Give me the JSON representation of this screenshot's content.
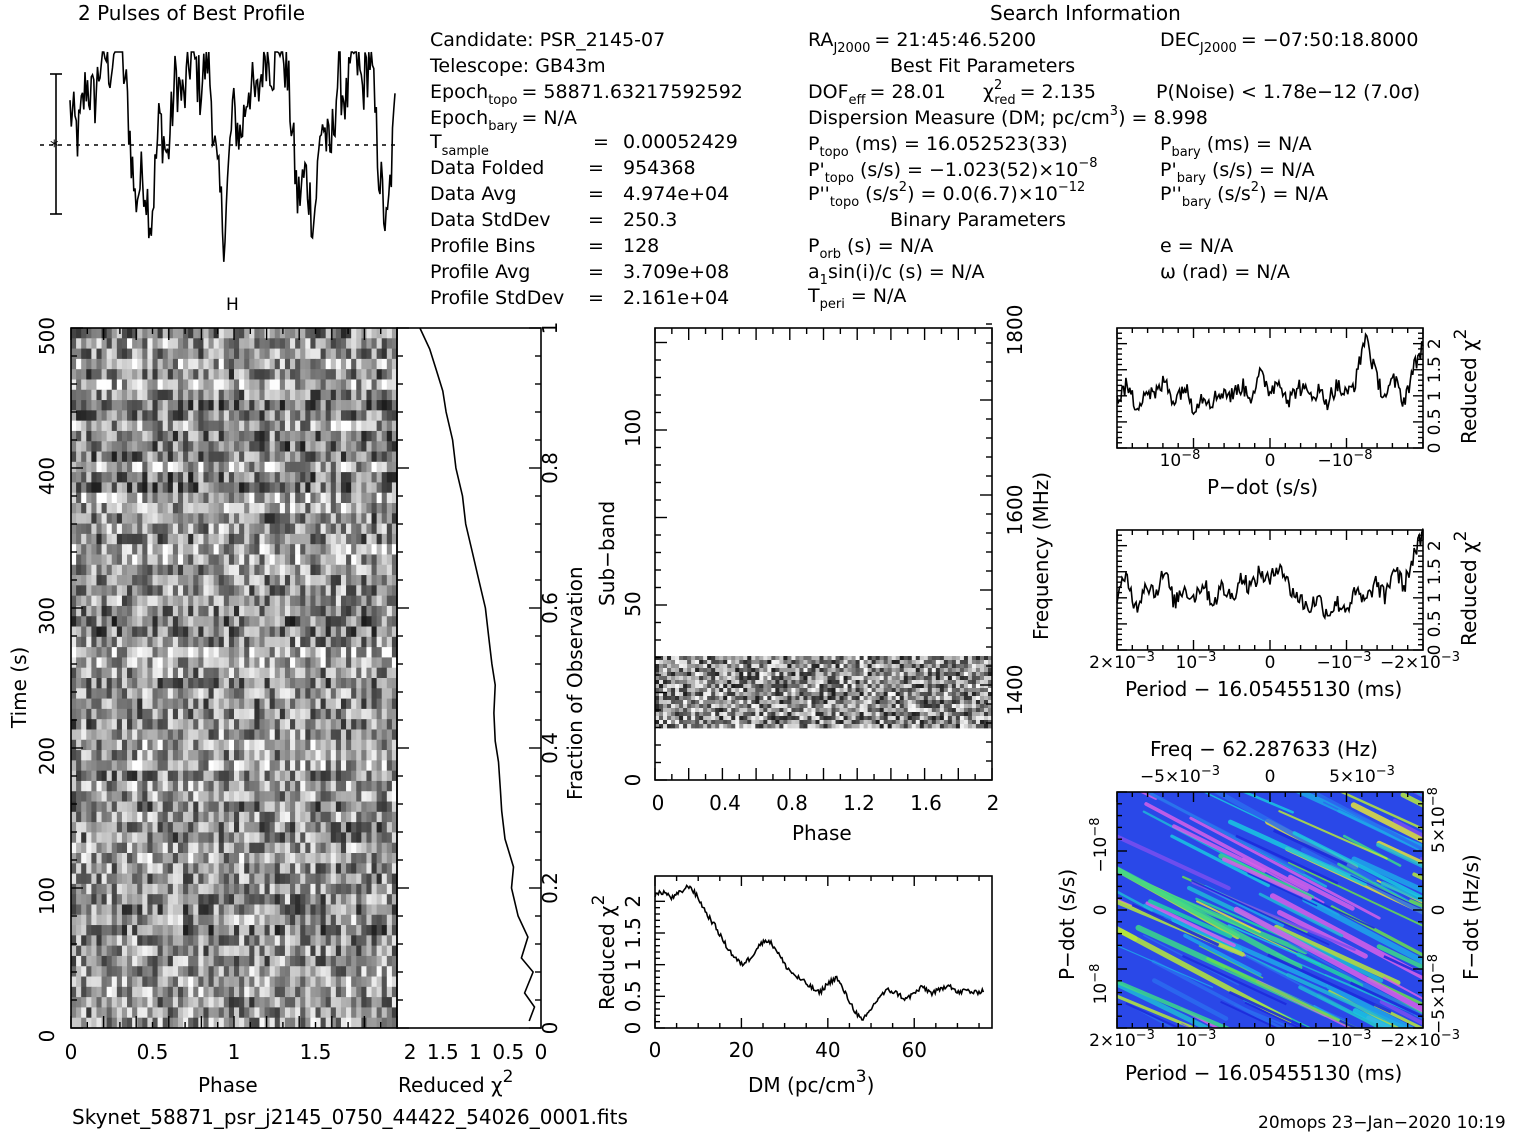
{
  "header": {
    "profile_title": "2 Pulses of Best Profile",
    "search_title": "Search Information",
    "best_fit_title": "Best Fit Parameters",
    "binary_title": "Binary Parameters"
  },
  "candidate_info": {
    "candidate": "Candidate:  PSR_2145-07",
    "telescope": "Telescope:  GB43m",
    "epoch_topo_label": "Epoch",
    "epoch_topo_sub": "topo",
    "epoch_topo_value": "= 58871.63217592592",
    "epoch_bary_label": "Epoch",
    "epoch_bary_sub": "bary",
    "epoch_bary_value": "= N/A",
    "tsample_label": "T",
    "tsample_sub": "sample",
    "tsample_eq": "=",
    "tsample_value": "0.00052429",
    "rows": [
      {
        "label": "Data Folded",
        "eq": "=",
        "value": "954368"
      },
      {
        "label": "Data Avg",
        "eq": "=",
        "value": "4.974e+04"
      },
      {
        "label": "Data StdDev",
        "eq": "=",
        "value": "250.3"
      },
      {
        "label": "Profile Bins",
        "eq": "=",
        "value": "128"
      },
      {
        "label": "Profile Avg",
        "eq": "=",
        "value": "3.709e+08"
      },
      {
        "label": "Profile StdDev",
        "eq": "=",
        "value": "2.161e+04"
      }
    ]
  },
  "search_info": {
    "ra_label": "RA",
    "ra_sub": "J2000",
    "ra_value": "= 21:45:46.5200",
    "dec_label": "DEC",
    "dec_sub": "J2000",
    "dec_value": "= −07:50:18.8000",
    "dof_label": "DOF",
    "dof_sub": "eff",
    "dof_value": "= 28.01",
    "chi_label": "χ",
    "chi_sup": "2",
    "chi_sub": "red",
    "chi_value": "= 2.135",
    "pnoise": "P(Noise) < 1.78e−12   (7.0σ)",
    "dm_line": "Dispersion Measure (DM; pc/cm",
    "dm_sup": "3",
    "dm_value": ") = 8.998",
    "ptopo_label": "P",
    "ptopo_sub": "topo",
    "ptopo_value": "(ms) =  16.052523(33)",
    "pbary_label": "P",
    "pbary_sub": "bary",
    "pbary_value": "(ms) = N/A",
    "pdot_topo_label": "P'",
    "pdot_topo_sub": "topo",
    "pdot_topo_value": "(s/s) = −1.023(52)×10",
    "pdot_topo_exp": "−8",
    "pdot_bary_label": "P'",
    "pdot_bary_sub": "bary",
    "pdot_bary_value": "(s/s) = N/A",
    "pddot_topo_label": "P''",
    "pddot_topo_sub": "topo",
    "pddot_topo_value": "(s/s",
    "pddot_topo_sup": "2",
    "pddot_topo_value2": ") = 0.0(6.7)×10",
    "pddot_topo_exp": "−12",
    "pddot_bary_label": "P''",
    "pddot_bary_sub": "bary",
    "pddot_bary_value": "(s/s",
    "pddot_bary_sup": "2",
    "pddot_bary_value2": ") = N/A",
    "porb_label": "P",
    "porb_sub": "orb",
    "porb_value": "(s) = N/A",
    "a1_label": "a",
    "a1_sub": "1",
    "a1_value": "sin(i)/c (s) = N/A",
    "tperi_label": "T",
    "tperi_sub": "peri",
    "tperi_value": "= N/A",
    "e_value": "e = N/A",
    "omega_value": "ω (rad) = N/A"
  },
  "axes": {
    "time_ylabel": "Time (s)",
    "phase_xlabel": "Phase",
    "redchi_xlabel": "Reduced χ",
    "redchi_sup": "2",
    "fraction_label": "Fraction of Observation",
    "subband_label": "Sub−band",
    "frequency_label": "Frequency (MHz)",
    "phase2_xlabel": "Phase",
    "dm_xlabel": "DM (pc/cm",
    "dm_xsup": "3",
    "dm_xclose": ")",
    "dm_ylabel": "Reduced χ",
    "dm_ysup": "2",
    "pdot_xlabel": "P−dot (s/s)",
    "period_xlabel": "Period − 16.05455130 (ms)",
    "period2_xlabel": "Period − 16.05455130 (ms)",
    "redchi_side1": "Reduced χ",
    "redchi_side2": "Reduced χ",
    "redchi_side_sup": "2",
    "freq_top_label": "Freq − 62.287633 (Hz)",
    "pdot_left_label": "P−dot (s/s)",
    "fdot_right_label": "F−dot (Hz/s)"
  },
  "ticks": {
    "time_y": [
      "0",
      "100",
      "200",
      "300",
      "400",
      "500"
    ],
    "phase_x": [
      "0",
      "0.5",
      "1",
      "1.5"
    ],
    "redchi_x": [
      "2",
      "1.5",
      "1",
      "0.5",
      "0"
    ],
    "fraction_y": [
      "0",
      "0.2",
      "0.4",
      "0.6",
      "0.8",
      "1"
    ],
    "subband_y": [
      "0",
      "50",
      "100"
    ],
    "freq_y": [
      "1400",
      "1600",
      "1800"
    ],
    "phase2_x": [
      "0",
      "0.4",
      "0.8",
      "1.2",
      "1.6",
      "2"
    ],
    "dm_x": [
      "0",
      "20",
      "40",
      "60"
    ],
    "dm_y": [
      "0",
      "0.5",
      "1",
      "1.5",
      "2"
    ],
    "pdot_x": [
      "10",
      "0",
      "−10"
    ],
    "pdot_x_exp": "−8",
    "chi_side_y": [
      "0",
      "0.5",
      "1",
      "1.5",
      "2"
    ],
    "period_x": [
      "2×10",
      "10",
      "0",
      "−10",
      "−2×10"
    ],
    "period_x_exp": "−3",
    "freq_top_x": [
      "−5×10",
      "0",
      "5×10"
    ],
    "freq_top_exp": "−3",
    "pp_left_y": [
      "−10",
      "0",
      "10"
    ],
    "pp_left_exp": "−8",
    "pp_right_y": [
      "5×10",
      "0",
      "−5×10"
    ],
    "pp_right_exp": "−8"
  },
  "footer": {
    "filename": "Skynet_58871_psr_j2145_0750_44422_54026_0001.fits",
    "stamp": "20mops 23−Jan−2020 10:19"
  },
  "chart_data": [
    {
      "type": "line",
      "title": "2 Pulses of Best Profile",
      "xlabel": "",
      "ylabel": "",
      "x": [
        0,
        0.05,
        0.1,
        0.15,
        0.2,
        0.25,
        0.3,
        0.35,
        0.4,
        0.45,
        0.5,
        0.55,
        0.6,
        0.65,
        0.7,
        0.75,
        0.8,
        0.85,
        0.9,
        0.95,
        1.0,
        1.05,
        1.1,
        1.15,
        1.2,
        1.25,
        1.3,
        1.35,
        1.4,
        1.45,
        1.5,
        1.55,
        1.6,
        1.65,
        1.7,
        1.75,
        1.8,
        1.85,
        1.9,
        1.95,
        2.0
      ],
      "values": [
        0.5,
        0.1,
        0.9,
        0.6,
        1.4,
        1.1,
        1.6,
        0.7,
        -0.8,
        -0.4,
        -1.1,
        0.4,
        -0.2,
        1.0,
        0.6,
        1.4,
        0.8,
        1.3,
        -0.3,
        -1.3,
        0.5,
        0.1,
        0.9,
        0.6,
        1.4,
        1.1,
        1.6,
        0.7,
        -0.8,
        -0.4,
        -1.1,
        0.4,
        -0.2,
        1.0,
        0.6,
        1.4,
        0.8,
        1.3,
        -0.3,
        -1.3,
        0.5
      ]
    },
    {
      "type": "line",
      "title": "",
      "xlabel": "Reduced χ2",
      "ylabel": "Fraction of Observation",
      "x": [
        0.18,
        0.1,
        0.25,
        0.12,
        0.3,
        0.2,
        0.35,
        0.45,
        0.42,
        0.55,
        0.6,
        0.62,
        0.65,
        0.7,
        0.72,
        0.7,
        0.75,
        0.8,
        0.85,
        0.95,
        1.05,
        1.15,
        1.2,
        1.3,
        1.35,
        1.45,
        1.5,
        1.6,
        1.7,
        1.85
      ],
      "y": [
        0.01,
        0.03,
        0.05,
        0.08,
        0.1,
        0.13,
        0.16,
        0.2,
        0.23,
        0.27,
        0.31,
        0.34,
        0.38,
        0.41,
        0.45,
        0.49,
        0.52,
        0.56,
        0.6,
        0.64,
        0.68,
        0.72,
        0.76,
        0.8,
        0.84,
        0.88,
        0.91,
        0.94,
        0.97,
        1.0
      ],
      "xlim": [
        2.2,
        0
      ],
      "ylim": [
        0,
        1
      ]
    },
    {
      "type": "line",
      "title": "",
      "xlabel": "DM (pc/cm3)",
      "ylabel": "Reduced χ2",
      "x": [
        0,
        2,
        4,
        6,
        8,
        10,
        12,
        14,
        16,
        18,
        20,
        22,
        24,
        26,
        28,
        30,
        32,
        34,
        36,
        38,
        40,
        42,
        44,
        46,
        48,
        50,
        52,
        54,
        56,
        58,
        60,
        62,
        64,
        66,
        68,
        70,
        72,
        74,
        76
      ],
      "values": [
        2.1,
        2.15,
        2.05,
        2.15,
        2.25,
        2.05,
        1.8,
        1.6,
        1.35,
        1.15,
        1.0,
        1.1,
        1.3,
        1.4,
        1.25,
        1.0,
        0.85,
        0.75,
        0.65,
        0.55,
        0.7,
        0.8,
        0.55,
        0.3,
        0.1,
        0.3,
        0.5,
        0.6,
        0.55,
        0.45,
        0.55,
        0.65,
        0.55,
        0.6,
        0.7,
        0.55,
        0.6,
        0.55,
        0.6
      ],
      "xlim": [
        0,
        78
      ],
      "ylim": [
        0,
        2.4
      ]
    },
    {
      "type": "line",
      "title": "",
      "xlabel": "P−dot (s/s)",
      "ylabel": "Reduced χ2",
      "values": [
        0.9,
        1.2,
        0.8,
        1.1,
        1.0,
        1.3,
        0.9,
        1.2,
        0.8,
        1.0,
        0.9,
        1.1,
        1.0,
        1.2,
        1.0,
        1.4,
        1.1,
        1.3,
        0.9,
        1.2,
        1.0,
        1.1,
        0.9,
        1.2,
        1.0,
        1.3,
        2.2,
        1.4,
        1.0,
        1.3,
        0.9,
        1.5,
        2.0
      ],
      "ylim": [
        0,
        2.3
      ]
    },
    {
      "type": "line",
      "title": "",
      "xlabel": "Period − 16.05455130 (ms)",
      "ylabel": "Reduced χ2",
      "values": [
        1.0,
        1.4,
        0.8,
        1.3,
        1.1,
        1.5,
        0.9,
        1.2,
        1.0,
        1.3,
        0.9,
        1.2,
        1.0,
        1.4,
        1.2,
        1.5,
        1.3,
        1.7,
        1.2,
        1.0,
        0.8,
        1.0,
        0.7,
        0.9,
        0.8,
        1.1,
        0.9,
        1.3,
        1.0,
        1.6,
        1.2,
        1.8,
        2.2
      ],
      "ylim": [
        0,
        2.3
      ]
    }
  ]
}
